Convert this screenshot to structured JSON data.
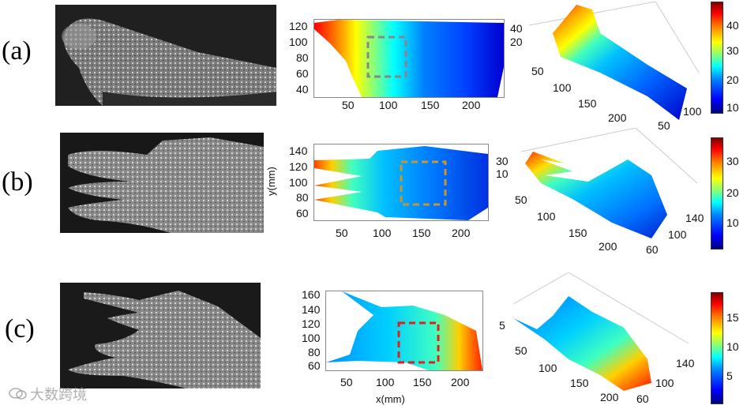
{
  "panels": [
    {
      "label": "(a)",
      "plot2d": {
        "xticks": [
          "50",
          "100",
          "150",
          "200"
        ],
        "yticks": [
          "120",
          "100",
          "80",
          "60",
          "40"
        ],
        "ylabel": "",
        "xlabel": "",
        "roi_color": "#888888"
      },
      "plot3d": {
        "z_ticks": [
          "40",
          "20"
        ],
        "x_ticks": [
          "50",
          "100",
          "150",
          "200"
        ],
        "y_ticks": [
          "100",
          "50"
        ]
      },
      "colorbar": {
        "ticks": [
          "40",
          "30",
          "20",
          "10"
        ],
        "range": [
          8,
          46
        ]
      }
    },
    {
      "label": "(b)",
      "plot2d": {
        "xticks": [
          "50",
          "100",
          "150",
          "200"
        ],
        "yticks": [
          "140",
          "120",
          "100",
          "80",
          "60"
        ],
        "ylabel": "y(mm)",
        "xlabel": "",
        "roi_color": "#c8962c"
      },
      "plot3d": {
        "z_ticks": [
          "30",
          "10"
        ],
        "x_ticks": [
          "50",
          "100",
          "150",
          "200"
        ],
        "y_ticks": [
          "140",
          "100",
          "60"
        ]
      },
      "colorbar": {
        "ticks": [
          "30",
          "20",
          "10"
        ],
        "range": [
          0,
          38
        ]
      }
    },
    {
      "label": "(c)",
      "plot2d": {
        "xticks": [
          "50",
          "100",
          "150",
          "200"
        ],
        "yticks": [
          "160",
          "140",
          "120",
          "100",
          "80",
          "60"
        ],
        "ylabel": "",
        "xlabel": "x(mm)",
        "roi_color": "#e02020"
      },
      "plot3d": {
        "z_ticks": [
          "5"
        ],
        "x_ticks": [
          "50",
          "100",
          "150",
          "200"
        ],
        "y_ticks": [
          "140",
          "100",
          "60"
        ]
      },
      "colorbar": {
        "ticks": [
          "15",
          "10",
          "5"
        ],
        "range": [
          0,
          19
        ]
      }
    }
  ],
  "watermark": {
    "text": "大数跨境"
  },
  "colors": {
    "jet_low": "#00007f",
    "jet_mid": "#00ffff",
    "jet_high": "#7f0000"
  }
}
